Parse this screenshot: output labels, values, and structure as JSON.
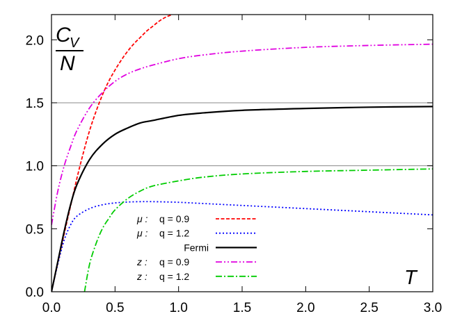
{
  "chart_data": {
    "type": "line",
    "title": "",
    "xlabel": "T",
    "ylabel": {
      "numerator": "C",
      "subscript": "V",
      "denominator": "N"
    },
    "xlim": [
      0,
      3.0
    ],
    "ylim": [
      0,
      2.2
    ],
    "xticks": [
      "0.0",
      "0.5",
      "1.0",
      "1.5",
      "2.0",
      "2.5",
      "3.0"
    ],
    "yticks": [
      "0.0",
      "0.5",
      "1.0",
      "1.5",
      "2.0"
    ],
    "reference_lines": [
      1.0,
      1.5
    ],
    "legend_position": "bottom-center",
    "series": [
      {
        "name": "μ :   q = 0.9",
        "color": "#ff0000",
        "dash": "dashed",
        "legend": {
          "prefix": "μ",
          "q": "q = 0.9"
        },
        "x": [
          0,
          0.05,
          0.1,
          0.15,
          0.2,
          0.25,
          0.3,
          0.35,
          0.4,
          0.45,
          0.5,
          0.55,
          0.6,
          0.65,
          0.7,
          0.75,
          0.8,
          0.85,
          0.9,
          0.95
        ],
        "y": [
          0,
          0.23,
          0.46,
          0.68,
          0.9,
          1.1,
          1.28,
          1.43,
          1.56,
          1.67,
          1.76,
          1.84,
          1.91,
          1.97,
          2.02,
          2.07,
          2.11,
          2.15,
          2.18,
          2.2
        ]
      },
      {
        "name": "μ :   q = 1.2",
        "color": "#0000ff",
        "dash": "dotted",
        "legend": {
          "prefix": "μ",
          "q": "q = 1.2"
        },
        "x": [
          0,
          0.05,
          0.1,
          0.15,
          0.2,
          0.3,
          0.4,
          0.5,
          0.6,
          0.7,
          0.8,
          1.0,
          1.2,
          1.5,
          2.0,
          2.5,
          3.0
        ],
        "y": [
          0,
          0.22,
          0.41,
          0.53,
          0.6,
          0.66,
          0.69,
          0.705,
          0.712,
          0.715,
          0.715,
          0.71,
          0.7,
          0.685,
          0.66,
          0.635,
          0.61
        ]
      },
      {
        "name": "Fermi",
        "color": "#000000",
        "dash": "solid",
        "legend": {
          "prefix": "",
          "q": "Fermi"
        },
        "x": [
          0,
          0.05,
          0.1,
          0.15,
          0.2,
          0.3,
          0.4,
          0.5,
          0.6,
          0.7,
          0.8,
          1.0,
          1.2,
          1.5,
          2.0,
          2.5,
          3.0
        ],
        "y": [
          0,
          0.24,
          0.48,
          0.69,
          0.85,
          1.05,
          1.17,
          1.25,
          1.3,
          1.34,
          1.36,
          1.4,
          1.42,
          1.44,
          1.455,
          1.465,
          1.47
        ]
      },
      {
        "name": "z :   q = 0.9",
        "color": "#e000e0",
        "dash": "dash-dot-dot",
        "legend": {
          "prefix": "z",
          "q": "q = 0.9"
        },
        "x": [
          0,
          0.05,
          0.1,
          0.15,
          0.2,
          0.3,
          0.4,
          0.5,
          0.6,
          0.7,
          0.8,
          1.0,
          1.2,
          1.5,
          2.0,
          2.5,
          3.0
        ],
        "y": [
          0.53,
          0.8,
          1.0,
          1.15,
          1.28,
          1.46,
          1.58,
          1.67,
          1.73,
          1.77,
          1.8,
          1.85,
          1.88,
          1.91,
          1.94,
          1.955,
          1.965
        ]
      },
      {
        "name": "z :   q = 1.2",
        "color": "#00cc00",
        "dash": "dash-dot",
        "legend": {
          "prefix": "z",
          "q": "q = 1.2"
        },
        "x": [
          0.26,
          0.3,
          0.35,
          0.4,
          0.45,
          0.5,
          0.6,
          0.7,
          0.8,
          1.0,
          1.2,
          1.5,
          2.0,
          2.5,
          3.0
        ],
        "y": [
          0,
          0.22,
          0.38,
          0.5,
          0.58,
          0.65,
          0.74,
          0.8,
          0.84,
          0.88,
          0.91,
          0.935,
          0.955,
          0.965,
          0.975
        ]
      }
    ]
  }
}
